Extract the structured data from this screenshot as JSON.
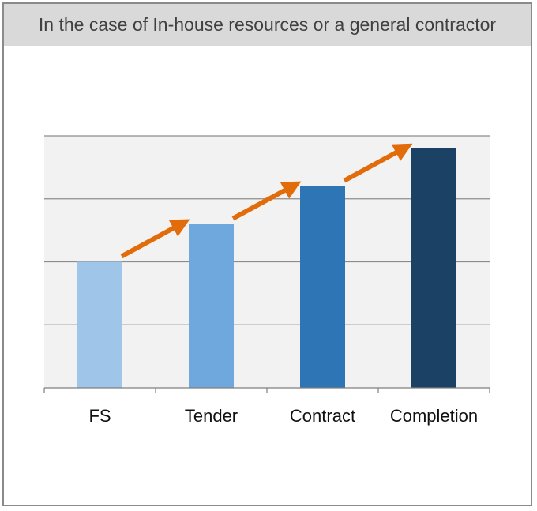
{
  "header": {
    "title": "In the case of In-house resources or a general contractor"
  },
  "colors": {
    "plot_background": "#f2f2f2",
    "gridline": "#8c8c8c",
    "arrow": "#e26b0a",
    "bars": [
      "#9fc5e8",
      "#6fa8dc",
      "#2e75b6",
      "#1b4265"
    ]
  },
  "chart_data": {
    "type": "bar",
    "categories": [
      "FS",
      "Tender",
      "Contract",
      "Completion"
    ],
    "values": [
      2,
      2.6,
      3.2,
      3.8
    ],
    "ylim": [
      0,
      4
    ],
    "grid": true,
    "y_tick_labels_shown": false,
    "annotations": [
      "increasing-trend-arrows"
    ]
  }
}
